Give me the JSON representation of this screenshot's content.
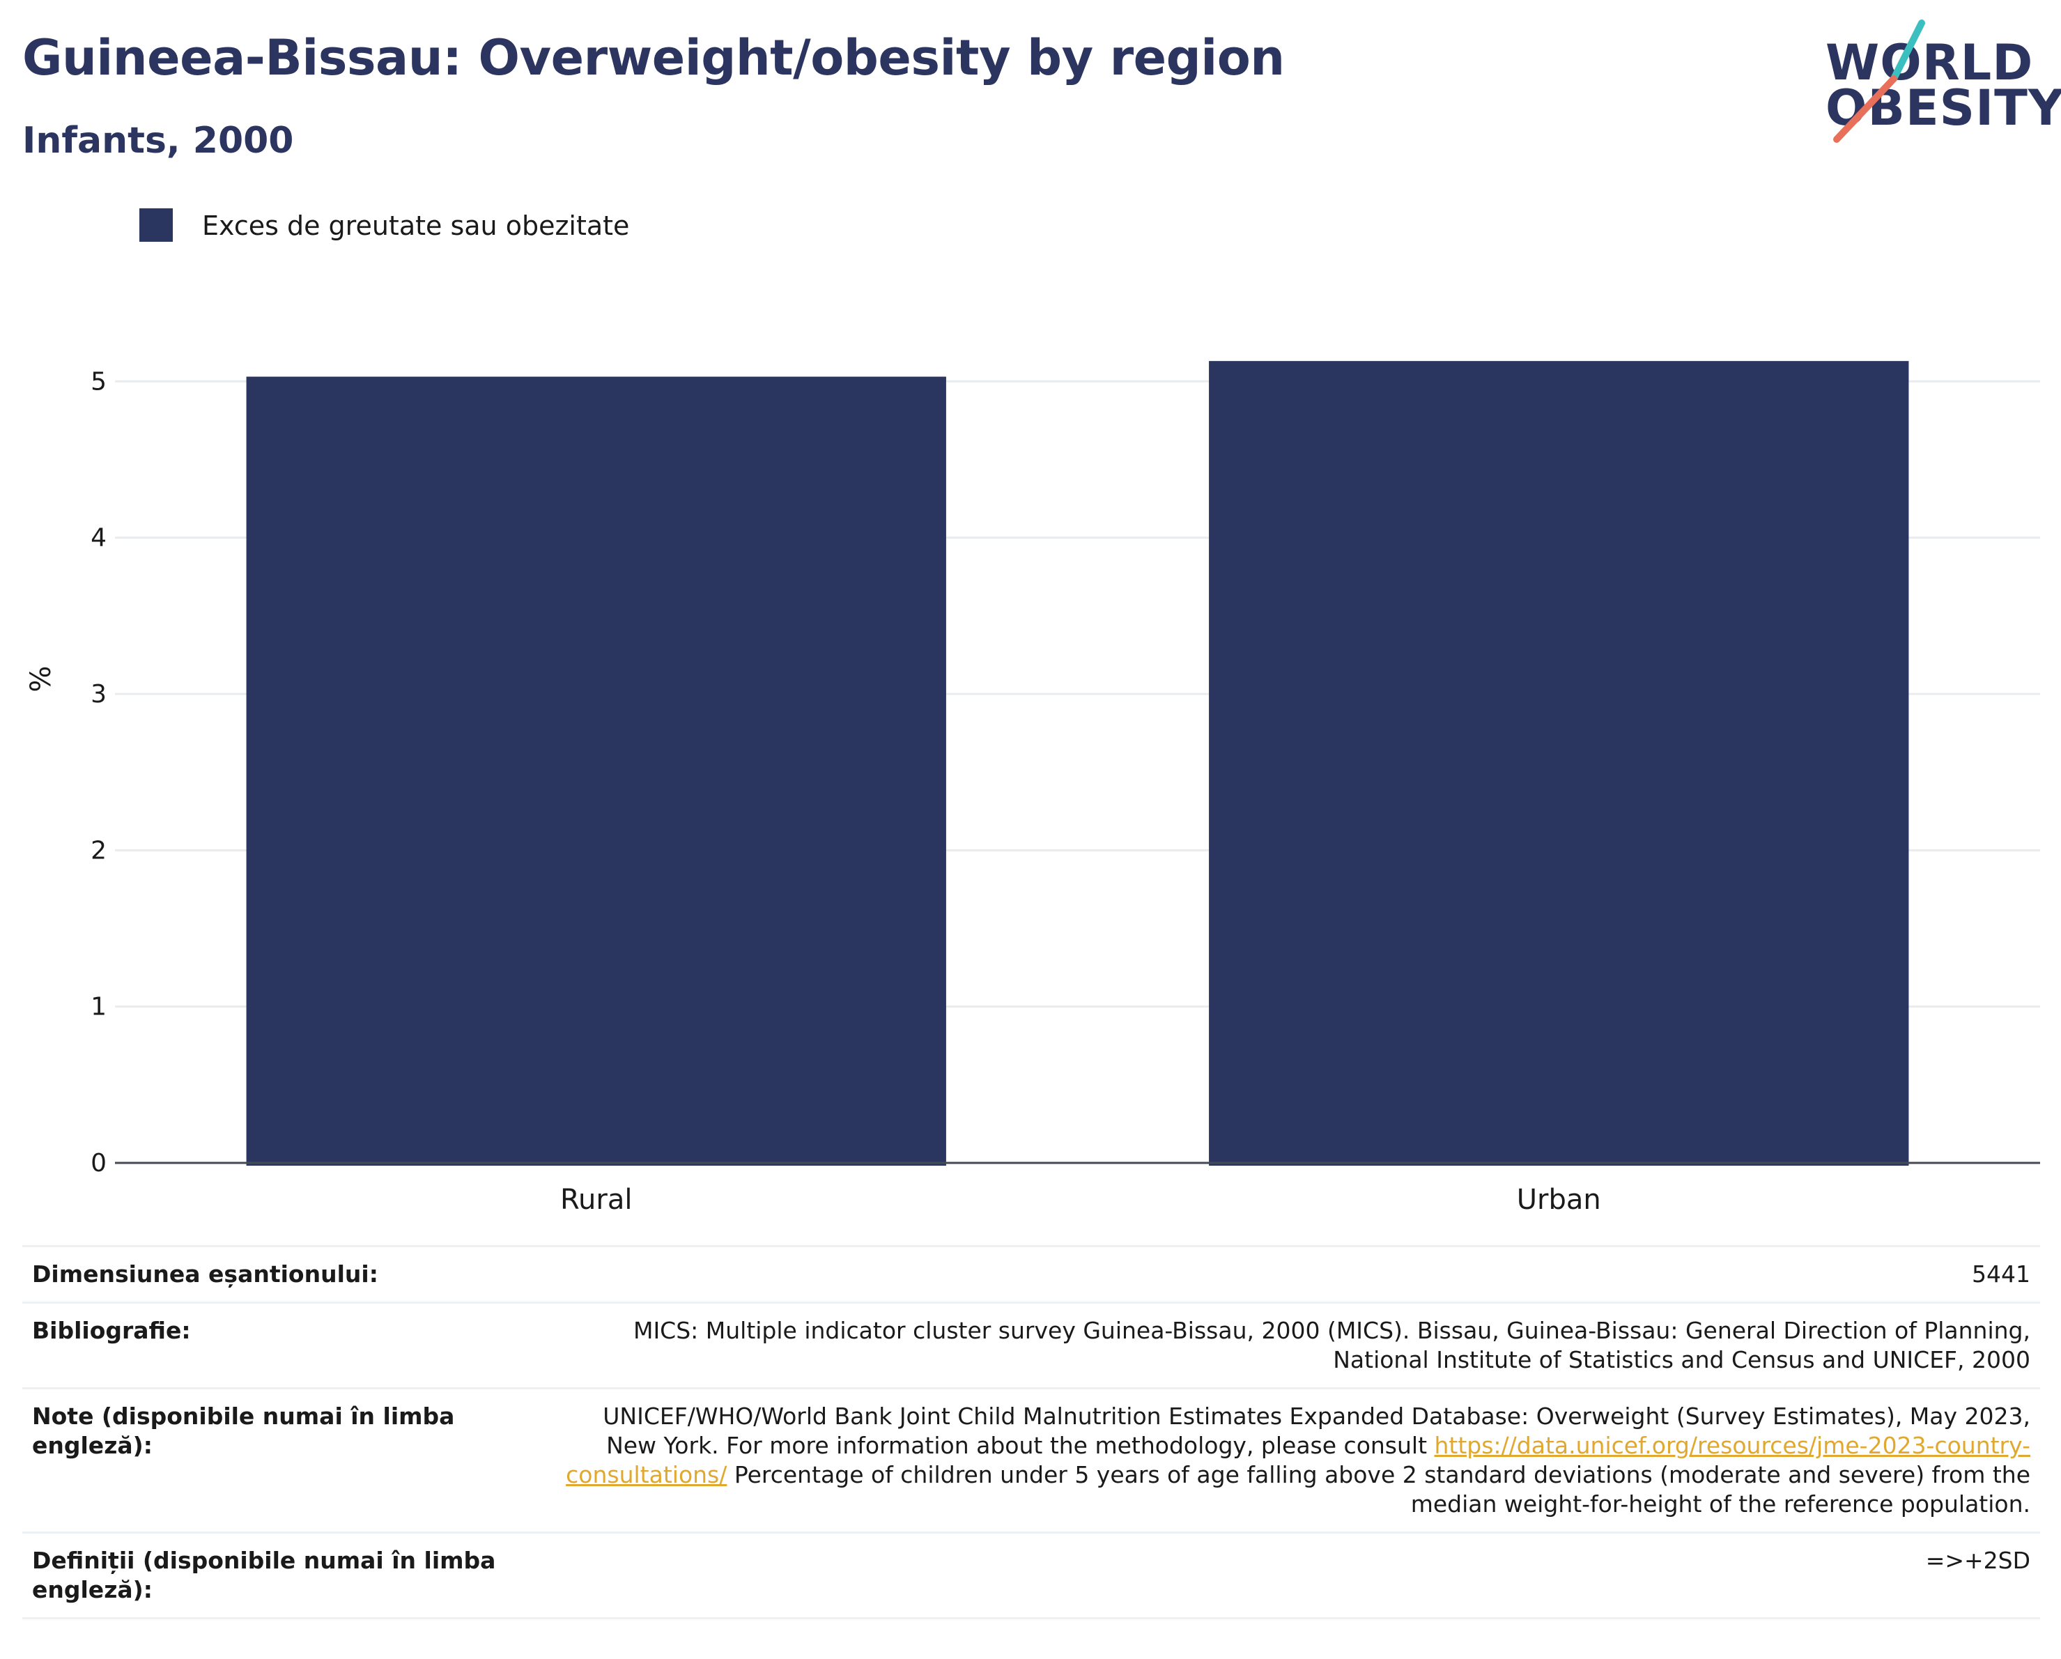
{
  "header": {
    "title": "Guineea-Bissau: Overweight/obesity by region",
    "subtitle": "Infants, 2000"
  },
  "logo": {
    "line1": "WORLD",
    "line2": "OBESITY",
    "colors": {
      "text": "#2b3560",
      "slash_top": "#3bbfbf",
      "slash_bottom": "#e8705a"
    }
  },
  "legend": {
    "label": "Exces de greutate sau obezitate",
    "color": "#2b3660"
  },
  "chart_data": {
    "type": "bar",
    "categories": [
      "Rural",
      "Urban"
    ],
    "series": [
      {
        "name": "Exces de greutate sau obezitate",
        "values": [
          5.03,
          5.13
        ],
        "color": "#2b3660"
      }
    ],
    "ylabel": "%",
    "ylim": [
      0,
      5.3
    ],
    "yticks": [
      0,
      1,
      2,
      3,
      4,
      5
    ],
    "grid": true,
    "legend_position": "top-left"
  },
  "info": {
    "sample_size": {
      "label": "Dimensiunea eșantionului:",
      "value": "5441"
    },
    "bibliography": {
      "label": "Bibliografie:",
      "value": "MICS: Multiple indicator cluster survey Guinea-Bissau, 2000 (MICS). Bissau, Guinea-Bissau: General Direction of Planning, National Institute of Statistics and Census and UNICEF, 2000"
    },
    "notes": {
      "label": "Note (disponibile numai în limba engleză):",
      "text_before": "UNICEF/WHO/World Bank Joint Child Malnutrition Estimates Expanded Database: Overweight (Survey Estimates), May 2023, New York. For more information about the methodology, please consult ",
      "link": "https://data.unicef.org/resources/jme-2023-country-consultations/",
      "text_after": " Percentage of children under 5 years of age falling above 2 standard deviations (moderate and severe) from the median weight-for-height of the reference population."
    },
    "definitions": {
      "label": "Definiții (disponibile numai în limba engleză):",
      "value": "=>+2SD"
    }
  }
}
